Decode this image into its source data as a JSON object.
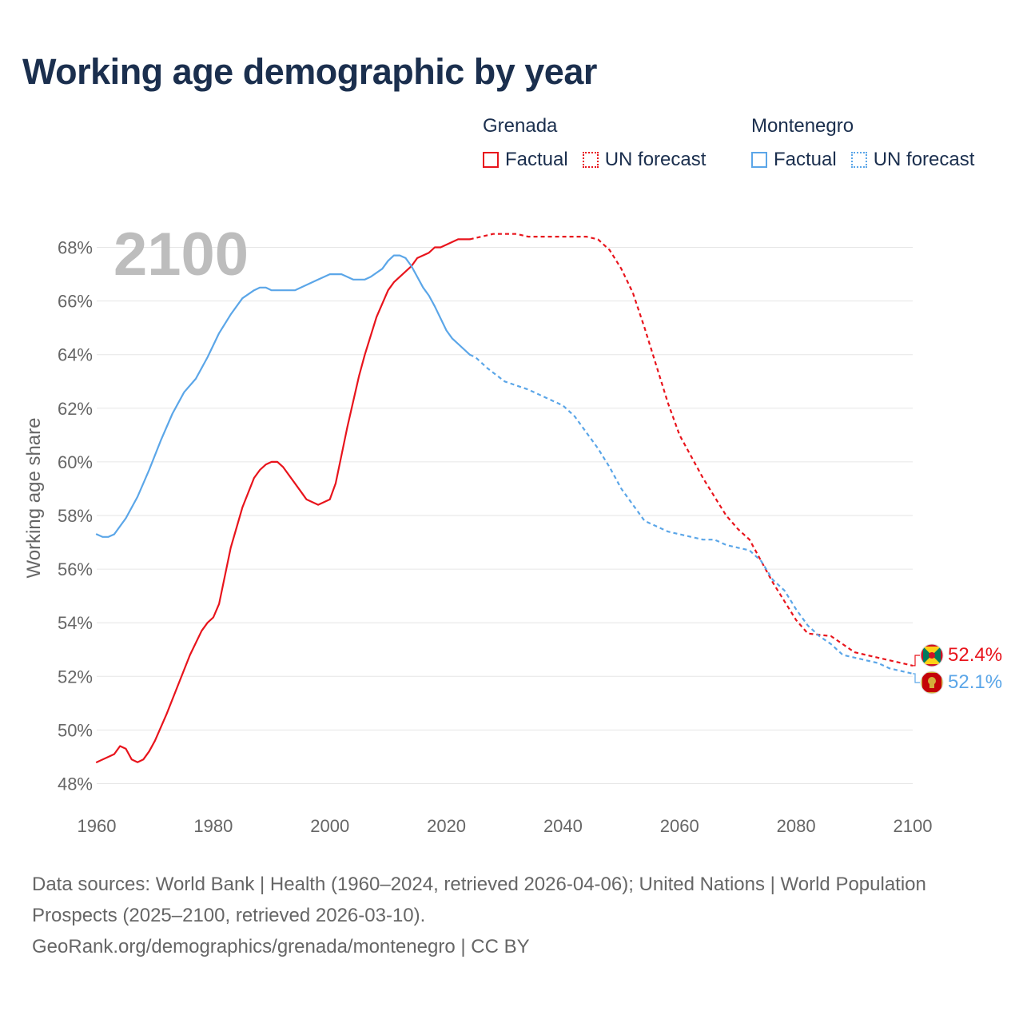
{
  "title": "Working age demographic by year",
  "legend": {
    "groups": [
      {
        "name": "Grenada",
        "color": "#e8141c",
        "factual_label": "Factual",
        "forecast_label": "UN forecast"
      },
      {
        "name": "Montenegro",
        "color": "#5ba6e8",
        "factual_label": "Factual",
        "forecast_label": "UN forecast"
      }
    ]
  },
  "year_overlay": "2100",
  "chart_data": {
    "type": "line",
    "ylabel": "Working age share",
    "xlabel": "",
    "xlim": [
      1960,
      2100
    ],
    "ylim": [
      47.5,
      68.5
    ],
    "x_ticks": [
      1960,
      1980,
      2000,
      2020,
      2040,
      2060,
      2080,
      2100
    ],
    "y_ticks": [
      48,
      50,
      52,
      54,
      56,
      58,
      60,
      62,
      64,
      66,
      68
    ],
    "y_tick_suffix": "%",
    "forecast_start": 2025,
    "series": [
      {
        "name": "Grenada",
        "color": "#e8141c",
        "end_label": "52.4%",
        "flag": "grenada-flag",
        "points": [
          [
            1960,
            48.8
          ],
          [
            1963,
            49.1
          ],
          [
            1964,
            49.4
          ],
          [
            1965,
            49.3
          ],
          [
            1966,
            48.9
          ],
          [
            1967,
            48.8
          ],
          [
            1968,
            48.9
          ],
          [
            1969,
            49.2
          ],
          [
            1970,
            49.6
          ],
          [
            1972,
            50.6
          ],
          [
            1974,
            51.7
          ],
          [
            1976,
            52.8
          ],
          [
            1978,
            53.7
          ],
          [
            1979,
            54.0
          ],
          [
            1980,
            54.2
          ],
          [
            1981,
            54.7
          ],
          [
            1983,
            56.8
          ],
          [
            1985,
            58.3
          ],
          [
            1987,
            59.4
          ],
          [
            1988,
            59.7
          ],
          [
            1989,
            59.9
          ],
          [
            1990,
            60.0
          ],
          [
            1991,
            60.0
          ],
          [
            1992,
            59.8
          ],
          [
            1995,
            58.9
          ],
          [
            1996,
            58.6
          ],
          [
            1998,
            58.4
          ],
          [
            2000,
            58.6
          ],
          [
            2001,
            59.2
          ],
          [
            2003,
            61.3
          ],
          [
            2005,
            63.2
          ],
          [
            2006,
            64.0
          ],
          [
            2008,
            65.4
          ],
          [
            2010,
            66.4
          ],
          [
            2011,
            66.7
          ],
          [
            2013,
            67.1
          ],
          [
            2014,
            67.3
          ],
          [
            2015,
            67.6
          ],
          [
            2017,
            67.8
          ],
          [
            2018,
            68.0
          ],
          [
            2019,
            68.0
          ],
          [
            2020,
            68.1
          ],
          [
            2022,
            68.3
          ],
          [
            2024,
            68.3
          ],
          [
            2026,
            68.4
          ],
          [
            2028,
            68.5
          ],
          [
            2032,
            68.5
          ],
          [
            2034,
            68.4
          ],
          [
            2044,
            68.4
          ],
          [
            2046,
            68.3
          ],
          [
            2048,
            67.9
          ],
          [
            2050,
            67.2
          ],
          [
            2052,
            66.3
          ],
          [
            2054,
            65.0
          ],
          [
            2056,
            63.6
          ],
          [
            2058,
            62.2
          ],
          [
            2060,
            61.0
          ],
          [
            2062,
            60.2
          ],
          [
            2064,
            59.4
          ],
          [
            2066,
            58.7
          ],
          [
            2068,
            58.0
          ],
          [
            2070,
            57.5
          ],
          [
            2072,
            57.1
          ],
          [
            2074,
            56.3
          ],
          [
            2076,
            55.5
          ],
          [
            2078,
            54.8
          ],
          [
            2080,
            54.1
          ],
          [
            2082,
            53.6
          ],
          [
            2086,
            53.5
          ],
          [
            2088,
            53.2
          ],
          [
            2090,
            52.9
          ],
          [
            2092,
            52.8
          ],
          [
            2094,
            52.7
          ],
          [
            2098,
            52.5
          ],
          [
            2100,
            52.4
          ]
        ]
      },
      {
        "name": "Montenegro",
        "color": "#5ba6e8",
        "end_label": "52.1%",
        "flag": "montenegro-flag",
        "points": [
          [
            1960,
            57.3
          ],
          [
            1961,
            57.2
          ],
          [
            1962,
            57.2
          ],
          [
            1963,
            57.3
          ],
          [
            1965,
            57.9
          ],
          [
            1967,
            58.7
          ],
          [
            1969,
            59.7
          ],
          [
            1971,
            60.8
          ],
          [
            1973,
            61.8
          ],
          [
            1975,
            62.6
          ],
          [
            1977,
            63.1
          ],
          [
            1979,
            63.9
          ],
          [
            1981,
            64.8
          ],
          [
            1983,
            65.5
          ],
          [
            1985,
            66.1
          ],
          [
            1987,
            66.4
          ],
          [
            1988,
            66.5
          ],
          [
            1989,
            66.5
          ],
          [
            1990,
            66.4
          ],
          [
            1994,
            66.4
          ],
          [
            1996,
            66.6
          ],
          [
            1998,
            66.8
          ],
          [
            2000,
            67.0
          ],
          [
            2002,
            67.0
          ],
          [
            2004,
            66.8
          ],
          [
            2006,
            66.8
          ],
          [
            2007,
            66.9
          ],
          [
            2009,
            67.2
          ],
          [
            2010,
            67.5
          ],
          [
            2011,
            67.7
          ],
          [
            2012,
            67.7
          ],
          [
            2013,
            67.6
          ],
          [
            2014,
            67.3
          ],
          [
            2015,
            66.9
          ],
          [
            2016,
            66.5
          ],
          [
            2017,
            66.2
          ],
          [
            2018,
            65.8
          ],
          [
            2020,
            64.9
          ],
          [
            2021,
            64.6
          ],
          [
            2023,
            64.2
          ],
          [
            2024,
            64.0
          ],
          [
            2025,
            63.9
          ],
          [
            2027,
            63.5
          ],
          [
            2030,
            63.0
          ],
          [
            2034,
            62.7
          ],
          [
            2038,
            62.3
          ],
          [
            2040,
            62.1
          ],
          [
            2042,
            61.7
          ],
          [
            2044,
            61.1
          ],
          [
            2046,
            60.5
          ],
          [
            2048,
            59.8
          ],
          [
            2050,
            59.0
          ],
          [
            2052,
            58.4
          ],
          [
            2054,
            57.8
          ],
          [
            2056,
            57.6
          ],
          [
            2058,
            57.4
          ],
          [
            2060,
            57.3
          ],
          [
            2062,
            57.2
          ],
          [
            2064,
            57.1
          ],
          [
            2066,
            57.1
          ],
          [
            2068,
            56.9
          ],
          [
            2070,
            56.8
          ],
          [
            2072,
            56.7
          ],
          [
            2074,
            56.3
          ],
          [
            2076,
            55.6
          ],
          [
            2078,
            55.2
          ],
          [
            2080,
            54.5
          ],
          [
            2082,
            53.9
          ],
          [
            2084,
            53.5
          ],
          [
            2086,
            53.2
          ],
          [
            2088,
            52.8
          ],
          [
            2090,
            52.7
          ],
          [
            2092,
            52.6
          ],
          [
            2094,
            52.5
          ],
          [
            2096,
            52.3
          ],
          [
            2098,
            52.2
          ],
          [
            2100,
            52.1
          ]
        ]
      }
    ]
  },
  "footer": {
    "sources": "Data sources: World Bank | Health (1960–2024, retrieved 2026-04-06); United Nations | World Population Prospects (2025–2100, retrieved 2026-03-10).",
    "credit": "GeoRank.org/demographics/grenada/montenegro | CC BY"
  }
}
